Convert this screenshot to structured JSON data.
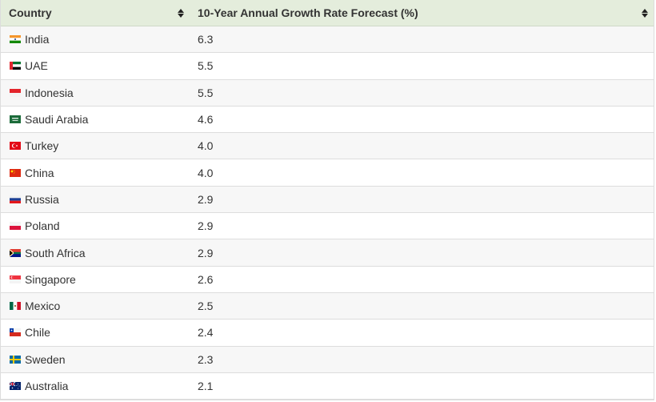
{
  "table": {
    "headers": [
      "Country",
      "10-Year Annual Growth Rate Forecast (%)"
    ],
    "rows": [
      {
        "country": "India",
        "value": "6.3",
        "flag": "india-flag-icon"
      },
      {
        "country": "UAE",
        "value": "5.5",
        "flag": "uae-flag-icon"
      },
      {
        "country": "Indonesia",
        "value": "5.5",
        "flag": "indonesia-flag-icon"
      },
      {
        "country": "Saudi Arabia",
        "value": "4.6",
        "flag": "saudi-arabia-flag-icon"
      },
      {
        "country": "Turkey",
        "value": "4.0",
        "flag": "turkey-flag-icon"
      },
      {
        "country": "China",
        "value": "4.0",
        "flag": "china-flag-icon"
      },
      {
        "country": "Russia",
        "value": "2.9",
        "flag": "russia-flag-icon"
      },
      {
        "country": "Poland",
        "value": "2.9",
        "flag": "poland-flag-icon"
      },
      {
        "country": "South Africa",
        "value": "2.9",
        "flag": "south-africa-flag-icon"
      },
      {
        "country": "Singapore",
        "value": "2.6",
        "flag": "singapore-flag-icon"
      },
      {
        "country": "Mexico",
        "value": "2.5",
        "flag": "mexico-flag-icon"
      },
      {
        "country": "Chile",
        "value": "2.4",
        "flag": "chile-flag-icon"
      },
      {
        "country": "Sweden",
        "value": "2.3",
        "flag": "sweden-flag-icon"
      },
      {
        "country": "Australia",
        "value": "2.1",
        "flag": "australia-flag-icon"
      }
    ]
  },
  "colors": {
    "header_bg": "#e4eddc",
    "row_alt": "#f7f7f7",
    "border": "#dddddd"
  }
}
